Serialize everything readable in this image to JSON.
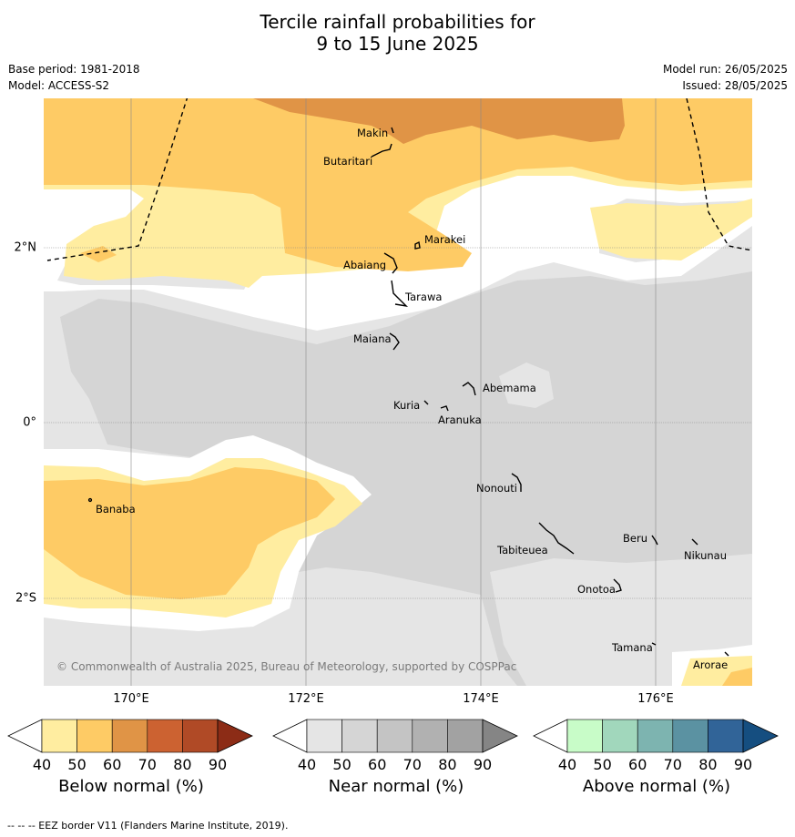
{
  "title_line1": "Tercile rainfall probabilities for",
  "title_line2": "9 to 15 June 2025",
  "base_period": "Base period: 1981-2018",
  "model": "Model: ACCESS-S2",
  "model_run": "Model run: 26/05/2025",
  "issued": "Issued: 28/05/2025",
  "copyright": "© Commonwealth of Australia 2025, Bureau of Meteorology, supported by COSPPac",
  "x_ticks": [
    "170°E",
    "172°E",
    "174°E",
    "176°E"
  ],
  "y_ticks": [
    "2°N",
    "0°",
    "2°S"
  ],
  "islands": [
    "Makin",
    "Butaritari",
    "Marakei",
    "Abaiang",
    "Tarawa",
    "Maiana",
    "Abemama",
    "Kuria",
    "Aranuka",
    "Nonouti",
    "Banaba",
    "Beru",
    "Nikunau",
    "Tabiteuea",
    "Onotoa",
    "Tamana",
    "Arorae"
  ],
  "colorbars": [
    {
      "label": "Below normal (%)",
      "ticks": [
        "40",
        "50",
        "60",
        "70",
        "80",
        "90"
      ],
      "colors": [
        "#ffffff",
        "#ffeda0",
        "#fecb65",
        "#e09446",
        "#cc6231",
        "#b04a26",
        "#8c2c16"
      ]
    },
    {
      "label": "Near normal (%)",
      "ticks": [
        "40",
        "50",
        "60",
        "70",
        "80",
        "90"
      ],
      "colors": [
        "#ffffff",
        "#e5e5e5",
        "#d5d5d5",
        "#c4c4c4",
        "#b1b1b1",
        "#a2a2a2",
        "#858585"
      ]
    },
    {
      "label": "Above normal (%)",
      "ticks": [
        "40",
        "50",
        "60",
        "70",
        "80",
        "90"
      ],
      "colors": [
        "#ffffff",
        "#c8fcc8",
        "#a1d7bc",
        "#7db4b0",
        "#5b92a2",
        "#316498",
        "#154e80"
      ]
    }
  ],
  "footnote": "-- -- -- EEZ border V11 (Flanders Marine Institute, 2019)."
}
